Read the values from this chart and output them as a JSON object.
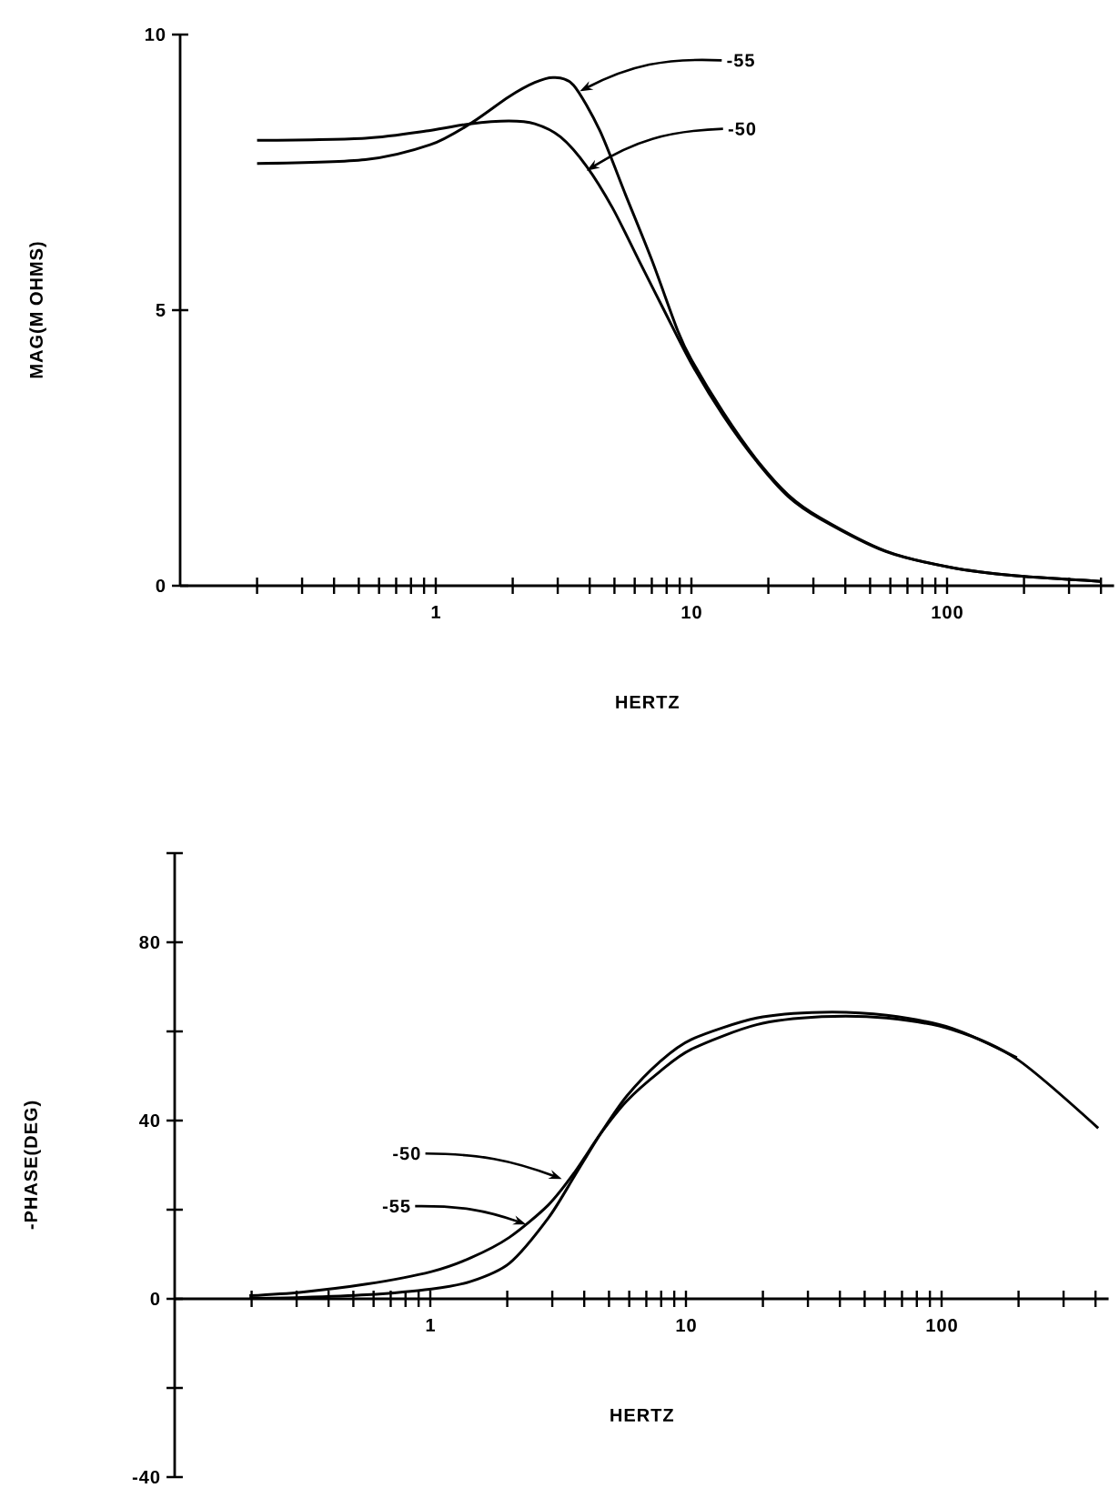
{
  "chart_data": [
    {
      "type": "line",
      "log": "x",
      "xlabel": "HERTZ",
      "ylabel": "MAG(M OHMS)",
      "xlim": [
        0.1,
        450
      ],
      "ylim": [
        0,
        10
      ],
      "xticks": [
        {
          "value": 0.2,
          "label": null
        },
        {
          "value": 0.3,
          "label": null
        },
        {
          "value": 0.4,
          "label": null
        },
        {
          "value": 0.5,
          "label": null
        },
        {
          "value": 0.6,
          "label": null
        },
        {
          "value": 0.7,
          "label": null
        },
        {
          "value": 0.8,
          "label": null
        },
        {
          "value": 0.9,
          "label": null
        },
        1,
        {
          "value": 2,
          "label": null
        },
        {
          "value": 3,
          "label": null
        },
        {
          "value": 4,
          "label": null
        },
        {
          "value": 5,
          "label": null
        },
        {
          "value": 6,
          "label": null
        },
        {
          "value": 7,
          "label": null
        },
        {
          "value": 8,
          "label": null
        },
        {
          "value": 9,
          "label": null
        },
        10,
        {
          "value": 20,
          "label": null
        },
        {
          "value": 30,
          "label": null
        },
        {
          "value": 40,
          "label": null
        },
        {
          "value": 50,
          "label": null
        },
        {
          "value": 60,
          "label": null
        },
        {
          "value": 70,
          "label": null
        },
        {
          "value": 80,
          "label": null
        },
        {
          "value": 90,
          "label": null
        },
        100,
        {
          "value": 200,
          "label": null
        },
        {
          "value": 300,
          "label": null
        },
        {
          "value": 400,
          "label": null
        }
      ],
      "yticks": [
        0,
        5,
        10
      ],
      "series": [
        {
          "color": "#000000",
          "x": [
            0.2,
            0.53,
            0.95,
            1.36,
            1.93,
            2.44,
            3.08,
            3.89,
            4.92,
            6.22,
            7.87,
            10,
            13.3,
            17.9,
            23.9,
            32,
            57.6,
            104,
            186,
            398
          ],
          "values": [
            8.08,
            8.12,
            8.26,
            8.38,
            8.43,
            8.38,
            8.14,
            7.61,
            6.85,
            5.91,
            4.97,
            4.03,
            3.09,
            2.27,
            1.62,
            1.21,
            0.62,
            0.33,
            0.18,
            0.08
          ]
        },
        {
          "color": "#000000",
          "x": [
            0.2,
            0.53,
            0.95,
            1.36,
            1.93,
            2.44,
            2.9,
            3.46,
            4.38,
            5.53,
            7.0,
            8.85,
            10,
            13.3,
            17.9,
            23.9,
            32,
            57.6,
            104,
            186,
            398
          ],
          "values": [
            7.66,
            7.73,
            8.0,
            8.38,
            8.87,
            9.13,
            9.22,
            9.08,
            8.26,
            7.09,
            5.91,
            4.62,
            4.1,
            3.15,
            2.3,
            1.65,
            1.23,
            0.63,
            0.33,
            0.18,
            0.08
          ]
        }
      ],
      "annotations": [
        {
          "text": "-55",
          "x": 3.66,
          "y": 8.97
        },
        {
          "text": "-50",
          "x": 3.89,
          "y": 7.53
        }
      ]
    },
    {
      "type": "line",
      "log": "x",
      "xlabel": "HERTZ",
      "ylabel": "-PHASE(DEG)",
      "xlim": [
        0.1,
        450
      ],
      "ylim": [
        -40,
        100
      ],
      "xticks": [
        {
          "value": 0.2,
          "label": null
        },
        {
          "value": 0.3,
          "label": null
        },
        {
          "value": 0.4,
          "label": null
        },
        {
          "value": 0.5,
          "label": null
        },
        {
          "value": 0.6,
          "label": null
        },
        {
          "value": 0.7,
          "label": null
        },
        {
          "value": 0.8,
          "label": null
        },
        {
          "value": 0.9,
          "label": null
        },
        1,
        {
          "value": 2,
          "label": null
        },
        {
          "value": 3,
          "label": null
        },
        {
          "value": 4,
          "label": null
        },
        {
          "value": 5,
          "label": null
        },
        {
          "value": 6,
          "label": null
        },
        {
          "value": 7,
          "label": null
        },
        {
          "value": 8,
          "label": null
        },
        {
          "value": 9,
          "label": null
        },
        10,
        {
          "value": 20,
          "label": null
        },
        {
          "value": 30,
          "label": null
        },
        {
          "value": 40,
          "label": null
        },
        {
          "value": 50,
          "label": null
        },
        {
          "value": 60,
          "label": null
        },
        {
          "value": 70,
          "label": null
        },
        {
          "value": 80,
          "label": null
        },
        {
          "value": 90,
          "label": null
        },
        100,
        {
          "value": 200,
          "label": null
        },
        {
          "value": 300,
          "label": null
        },
        {
          "value": 400,
          "label": null
        }
      ],
      "yticks": [
        -40,
        {
          "value": -20,
          "label": null
        },
        0,
        {
          "value": 20,
          "label": null
        },
        40,
        {
          "value": 60,
          "label": null
        },
        80,
        {
          "value": 100,
          "label": null
        }
      ],
      "series": [
        {
          "color": "#000000",
          "x": [
            0.196,
            0.313,
            0.563,
            1.01,
            1.44,
            2.04,
            2.9,
            3.67,
            4.64,
            5.87,
            7.87,
            10.5,
            18.9,
            34,
            61,
            110,
            197,
            410
          ],
          "values": [
            0.7,
            1.5,
            3.3,
            6.1,
            9.2,
            13.8,
            21.1,
            28.4,
            37.1,
            44.4,
            50.9,
            56,
            61.5,
            63.3,
            63,
            60.4,
            53.8,
            38.3
          ]
        },
        {
          "color": "#000000",
          "x": [
            0.196,
            0.313,
            0.563,
            1.01,
            1.44,
            2.04,
            2.9,
            3.67,
            4.64,
            5.87,
            7.87,
            10.5,
            18.9,
            34,
            61,
            110,
            197
          ],
          "values": [
            0.1,
            0.3,
            0.9,
            2.2,
            3.9,
            8,
            18.2,
            27.6,
            37.1,
            45.5,
            53.1,
            58.2,
            63,
            64.3,
            63.6,
            60.7,
            54.1
          ]
        }
      ],
      "annotations": [
        {
          "text": "-50",
          "x": 3.27,
          "y": 26.9
        },
        {
          "text": "-55",
          "x": 2.37,
          "y": 16.7
        }
      ]
    }
  ]
}
